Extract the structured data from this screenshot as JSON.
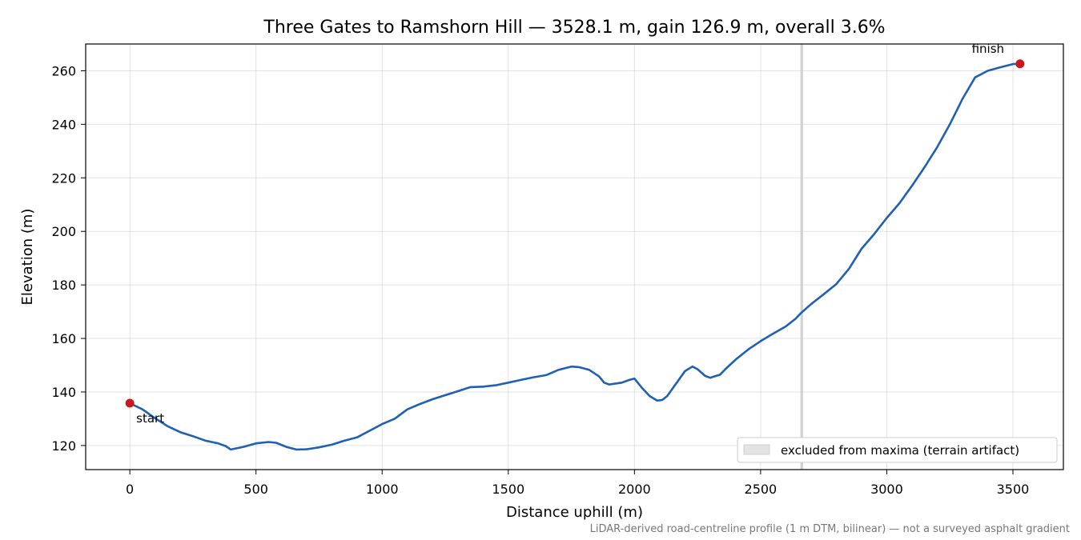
{
  "chart_data": {
    "type": "line",
    "title": "Three Gates to Ramshorn Hill — 3528.1 m, gain 126.9 m, overall 3.6%",
    "xlabel": "Distance uphill (m)",
    "ylabel": "Elevation (m)",
    "xlim": [
      -175,
      3700
    ],
    "ylim": [
      111,
      270
    ],
    "xticks": [
      0,
      500,
      1000,
      1500,
      2000,
      2500,
      3000,
      3500
    ],
    "yticks": [
      120,
      140,
      160,
      180,
      200,
      220,
      240,
      260
    ],
    "grid": true,
    "legend": {
      "placement": "lower-right",
      "entries": [
        "excluded from maxima (terrain artifact)"
      ]
    },
    "excluded_band": {
      "x": [
        2658,
        2668
      ],
      "label": "excluded from maxima (terrain artifact)"
    },
    "series": [
      {
        "color": "#1f5fb4",
        "x": [
          0,
          50,
          100,
          150,
          200,
          250,
          300,
          350,
          380,
          400,
          450,
          500,
          550,
          580,
          620,
          660,
          700,
          750,
          800,
          850,
          900,
          950,
          1000,
          1050,
          1100,
          1150,
          1200,
          1250,
          1300,
          1350,
          1400,
          1450,
          1500,
          1550,
          1600,
          1650,
          1700,
          1750,
          1780,
          1820,
          1860,
          1880,
          1900,
          1950,
          1980,
          2000,
          2030,
          2060,
          2090,
          2110,
          2130,
          2160,
          2200,
          2230,
          2250,
          2280,
          2300,
          2340,
          2360,
          2400,
          2450,
          2500,
          2550,
          2600,
          2640,
          2660,
          2700,
          2750,
          2800,
          2850,
          2900,
          2950,
          3000,
          3050,
          3100,
          3150,
          3200,
          3250,
          3300,
          3350,
          3400,
          3450,
          3500,
          3528.1
        ],
        "values": [
          135.8,
          133.5,
          130.2,
          127.2,
          125.0,
          123.5,
          121.8,
          120.8,
          119.8,
          118.5,
          119.5,
          120.8,
          121.3,
          121.0,
          119.5,
          118.5,
          118.6,
          119.3,
          120.3,
          121.8,
          123.0,
          125.5,
          128.0,
          130.0,
          133.5,
          135.5,
          137.3,
          138.8,
          140.3,
          141.8,
          142.0,
          142.5,
          143.5,
          144.5,
          145.5,
          146.3,
          148.3,
          149.5,
          149.3,
          148.3,
          145.8,
          143.5,
          142.8,
          143.5,
          144.5,
          145.0,
          141.5,
          138.5,
          136.8,
          137.0,
          138.5,
          142.5,
          147.8,
          149.5,
          148.5,
          146.0,
          145.3,
          146.5,
          148.5,
          152.0,
          155.8,
          159.0,
          161.8,
          164.5,
          167.5,
          169.5,
          172.8,
          176.5,
          180.3,
          186.0,
          193.5,
          199.0,
          205.0,
          210.5,
          217.0,
          224.0,
          231.5,
          240.0,
          249.5,
          257.5,
          260.0,
          261.3,
          262.5,
          262.6
        ]
      }
    ],
    "annotations": [
      {
        "text": "start",
        "x": 0,
        "y": 135.8
      },
      {
        "text": "finish",
        "x": 3528.1,
        "y": 262.6
      }
    ],
    "marker_color": "#c8181e",
    "footnote": "LiDAR-derived road-centreline profile (1 m DTM, bilinear) — not a surveyed asphalt gradient"
  }
}
